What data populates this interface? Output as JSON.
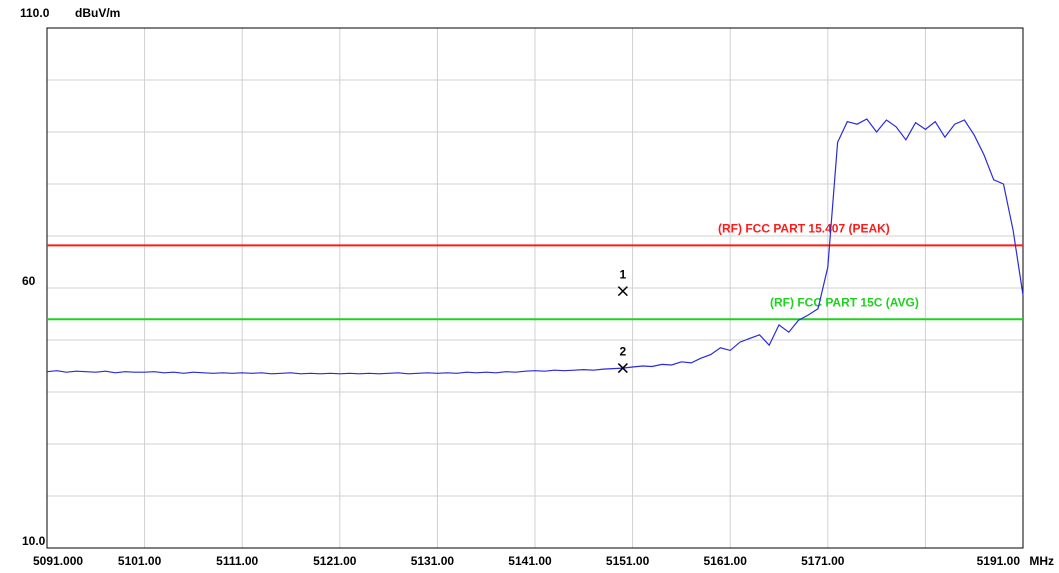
{
  "chart_data": {
    "type": "line",
    "y_unit": "dBuV/m",
    "x_unit": "MHz",
    "xlim": [
      5091,
      5191
    ],
    "ylim": [
      10,
      110
    ],
    "xticks": [
      {
        "value": 5091,
        "label": "5091.000"
      },
      {
        "value": 5101,
        "label": "5101.00"
      },
      {
        "value": 5111,
        "label": "5111.00"
      },
      {
        "value": 5121,
        "label": "5121.00"
      },
      {
        "value": 5131,
        "label": "5131.00"
      },
      {
        "value": 5141,
        "label": "5141.00"
      },
      {
        "value": 5151,
        "label": "5151.00"
      },
      {
        "value": 5161,
        "label": "5161.00"
      },
      {
        "value": 5171,
        "label": "5171.00"
      },
      {
        "value": 5181,
        "label": null
      },
      {
        "value": 5191,
        "label": "5191.00"
      }
    ],
    "yticks": [
      {
        "value": 10,
        "label": "10.0"
      },
      {
        "value": 20,
        "label": null
      },
      {
        "value": 30,
        "label": null
      },
      {
        "value": 40,
        "label": null
      },
      {
        "value": 50,
        "label": null
      },
      60,
      {
        "value": 70,
        "label": null
      },
      {
        "value": 80,
        "label": null
      },
      {
        "value": 90,
        "label": null
      },
      {
        "value": 100,
        "label": null
      },
      {
        "value": 110,
        "label": "110.0"
      }
    ],
    "grid": true,
    "x": [
      5091,
      5092,
      5093,
      5094,
      5095,
      5096,
      5097,
      5098,
      5099,
      5100,
      5101,
      5102,
      5103,
      5104,
      5105,
      5106,
      5107,
      5108,
      5109,
      5110,
      5111,
      5112,
      5113,
      5114,
      5115,
      5116,
      5117,
      5118,
      5119,
      5120,
      5121,
      5122,
      5123,
      5124,
      5125,
      5126,
      5127,
      5128,
      5129,
      5130,
      5131,
      5132,
      5133,
      5134,
      5135,
      5136,
      5137,
      5138,
      5139,
      5140,
      5141,
      5142,
      5143,
      5144,
      5145,
      5146,
      5147,
      5148,
      5149,
      5150,
      5151,
      5152,
      5153,
      5154,
      5155,
      5156,
      5157,
      5158,
      5159,
      5160,
      5161,
      5162,
      5163,
      5164,
      5165,
      5166,
      5167,
      5168,
      5169,
      5170,
      5171,
      5172,
      5173,
      5174,
      5175,
      5176,
      5177,
      5178,
      5179,
      5180,
      5181,
      5182,
      5183,
      5184,
      5185,
      5186,
      5187,
      5188,
      5189,
      5190,
      5191
    ],
    "series": [
      {
        "name": "trace",
        "color": "#2b2bd8",
        "values": [
          43.9,
          44.1,
          43.8,
          44.0,
          43.9,
          43.8,
          44.0,
          43.7,
          43.9,
          43.8,
          43.8,
          43.9,
          43.7,
          43.8,
          43.6,
          43.8,
          43.7,
          43.6,
          43.7,
          43.6,
          43.7,
          43.6,
          43.7,
          43.5,
          43.6,
          43.7,
          43.5,
          43.6,
          43.5,
          43.6,
          43.5,
          43.6,
          43.5,
          43.6,
          43.5,
          43.6,
          43.7,
          43.5,
          43.6,
          43.7,
          43.6,
          43.7,
          43.6,
          43.8,
          43.7,
          43.8,
          43.7,
          43.9,
          43.8,
          44.0,
          44.1,
          44.0,
          44.2,
          44.1,
          44.2,
          44.3,
          44.2,
          44.4,
          44.5,
          44.6,
          44.8,
          45.0,
          44.9,
          45.3,
          45.2,
          45.8,
          45.6,
          46.5,
          47.2,
          48.5,
          48.0,
          49.6,
          50.3,
          51.0,
          49.0,
          52.9,
          51.5,
          53.8,
          54.8,
          56.0,
          64.0,
          88.0,
          92.0,
          91.5,
          92.5,
          90.0,
          92.3,
          91.0,
          88.5,
          91.8,
          90.5,
          92.0,
          89.0,
          91.5,
          92.3,
          89.4,
          85.6,
          80.8,
          80.0,
          71.0,
          58.6
        ]
      }
    ],
    "limit_lines": [
      {
        "name": "(RF) FCC PART 15.407  (PEAK)",
        "color": "#ff1a1a",
        "value": 68.2
      },
      {
        "name": "(RF) FCC PART 15C (AVG)",
        "color": "#1ed21e",
        "value": 54
      }
    ],
    "markers": [
      {
        "label": "1",
        "x": 5150,
        "y": 59.4
      },
      {
        "label": "2",
        "x": 5150,
        "y": 44.6
      }
    ]
  }
}
